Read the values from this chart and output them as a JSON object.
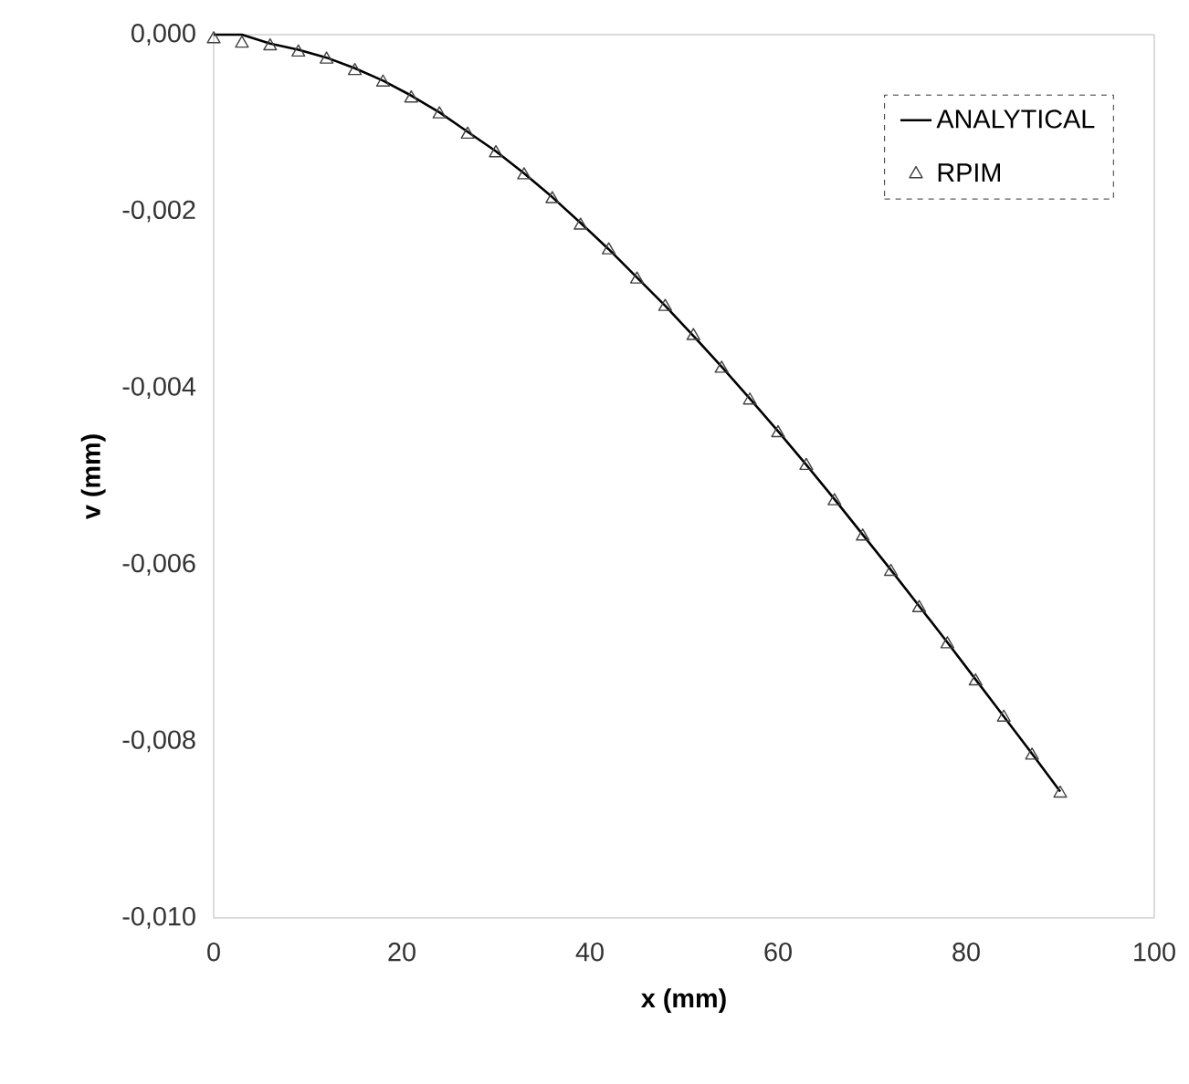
{
  "chart_data": {
    "type": "line",
    "xlabel": "x (mm)",
    "ylabel": "v (mm)",
    "xlim": [
      0,
      100
    ],
    "xticks": [
      0,
      20,
      40,
      60,
      80,
      100
    ],
    "ylim": [
      -0.01,
      0
    ],
    "yticks": [
      {
        "value": 0,
        "label": "0,000"
      },
      {
        "value": -0.002,
        "label": "-0,002"
      },
      {
        "value": -0.004,
        "label": "-0,004"
      },
      {
        "value": -0.006,
        "label": "-0,006"
      },
      {
        "value": -0.008,
        "label": "-0,008"
      },
      {
        "value": -0.01,
        "label": "-0,010"
      }
    ],
    "grid": false,
    "legend": "top right",
    "series": [
      {
        "name": "ANALYTICAL",
        "color": "#000000",
        "marker": "none",
        "line_style": "solid",
        "x": [
          0,
          3,
          6,
          9,
          12,
          15,
          18,
          21,
          24,
          27,
          30,
          33,
          36,
          39,
          42,
          45,
          48,
          51,
          54,
          57,
          60,
          63,
          66,
          69,
          72,
          75,
          78,
          81,
          84,
          87,
          90
        ],
        "values": [
          0,
          0,
          -0.0001,
          -0.00017,
          -0.00026,
          -0.00038,
          -0.00052,
          -0.00069,
          -0.00088,
          -0.0011,
          -0.00132,
          -0.00157,
          -0.00184,
          -0.00213,
          -0.00243,
          -0.00275,
          -0.00307,
          -0.00341,
          -0.00376,
          -0.00412,
          -0.00449,
          -0.00487,
          -0.00526,
          -0.00566,
          -0.00606,
          -0.00647,
          -0.00688,
          -0.0073,
          -0.00772,
          -0.00814,
          -0.00857
        ]
      },
      {
        "name": "RPIM",
        "type": "scatter",
        "color": "#404040",
        "marker": "triangle",
        "x": [
          0,
          3,
          6,
          9,
          12,
          15,
          18,
          21,
          24,
          27,
          30,
          33,
          36,
          39,
          42,
          45,
          48,
          51,
          54,
          57,
          60,
          63,
          66,
          69,
          72,
          75,
          78,
          81,
          84,
          87,
          90
        ],
        "values": [
          -5e-05,
          -0.0001,
          -0.00013,
          -0.0002,
          -0.00028,
          -0.00041,
          -0.00054,
          -0.00072,
          -0.0009,
          -0.00113,
          -0.00134,
          -0.00159,
          -0.00186,
          -0.00216,
          -0.00244,
          -0.00277,
          -0.00308,
          -0.00341,
          -0.00378,
          -0.00414,
          -0.00451,
          -0.00488,
          -0.00528,
          -0.00568,
          -0.00608,
          -0.00649,
          -0.0069,
          -0.00732,
          -0.00773,
          -0.00816,
          -0.00859
        ]
      }
    ]
  }
}
